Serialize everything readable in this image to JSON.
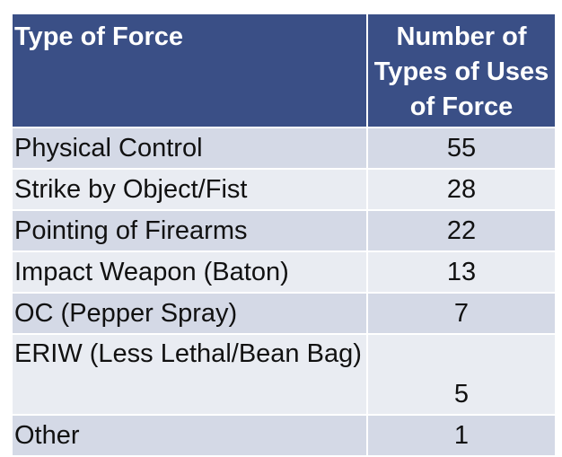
{
  "chart_data": {
    "type": "table",
    "columns": [
      "Type of Force",
      "Number of Types of Uses of Force"
    ],
    "header_lines": {
      "type": [
        "Type of Force"
      ],
      "count": [
        "Number of",
        "Types of Uses",
        "of Force"
      ]
    },
    "rows": [
      {
        "label": "Physical Control",
        "value": "55"
      },
      {
        "label": "Strike by Object/Fist",
        "value": "28"
      },
      {
        "label": "Pointing of Firearms",
        "value": "22"
      },
      {
        "label": "Impact Weapon (Baton)",
        "value": "13"
      },
      {
        "label": "OC (Pepper Spray)",
        "value": "7"
      },
      {
        "label": "ERIW (Less Lethal/Bean Bag)",
        "value": "5"
      },
      {
        "label": "Other",
        "value": "1"
      }
    ]
  },
  "colors": {
    "header_bg": "#3a4f86",
    "header_text": "#ffffff",
    "row_odd_bg": "#d4d9e6",
    "row_even_bg": "#e9ecf2",
    "body_text": "#111111"
  }
}
